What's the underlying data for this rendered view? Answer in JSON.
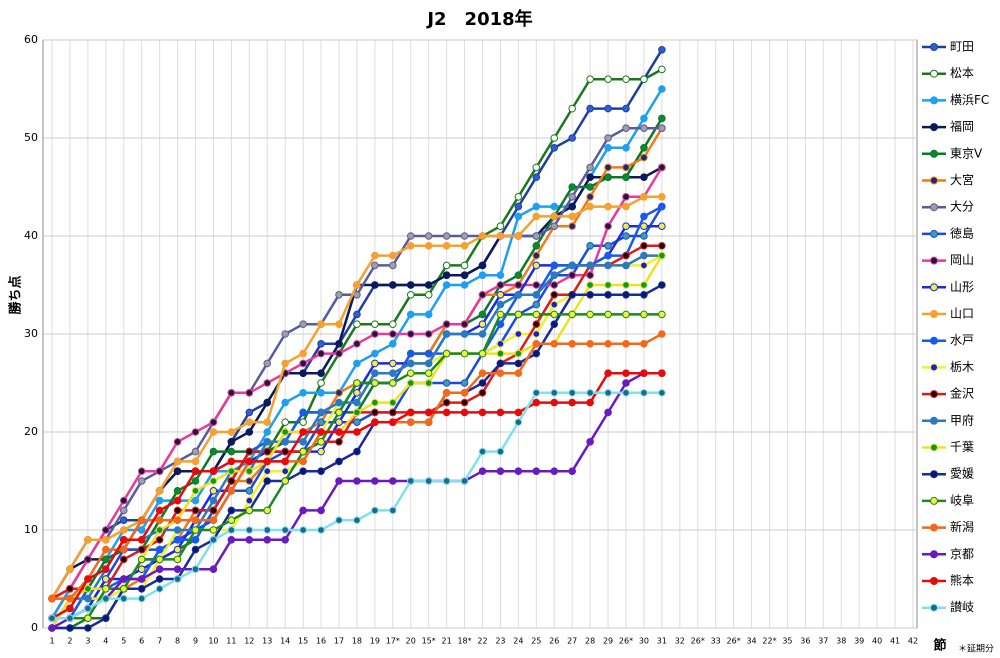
{
  "chart_data": {
    "type": "line",
    "title": "J2　2018年",
    "y_label": "勝ち点",
    "x_label": "節",
    "note": "＊延期分",
    "categories": [
      "1",
      "2",
      "3",
      "4",
      "5",
      "6",
      "7",
      "8",
      "9",
      "10",
      "11",
      "12",
      "13",
      "14",
      "15",
      "16",
      "17",
      "18",
      "19",
      "17*",
      "20",
      "15*",
      "21",
      "18*",
      "22",
      "23",
      "24",
      "25",
      "26",
      "27",
      "28",
      "29",
      "26*",
      "30",
      "31",
      "32",
      "26*",
      "33",
      "26*",
      "34",
      "22*",
      "35",
      "36",
      "37",
      "38",
      "39",
      "40",
      "41",
      "42"
    ],
    "ylim": [
      0,
      60
    ],
    "yticks": [
      0,
      10,
      20,
      30,
      40,
      50,
      60
    ],
    "grid": true,
    "series": [
      {
        "name": "町田",
        "color": "#1f3f9f",
        "marker": "#3060d0",
        "values": [
          1,
          4,
          7,
          10,
          11,
          11,
          14,
          16,
          16,
          16,
          19,
          22,
          23,
          26,
          26,
          29,
          29,
          32,
          35,
          35,
          35,
          35,
          36,
          36,
          37,
          40,
          43,
          46,
          49,
          50,
          53,
          53,
          53,
          56,
          59,
          null,
          null,
          null,
          null,
          null,
          null,
          null,
          null,
          null,
          null,
          null,
          null,
          null,
          null
        ]
      },
      {
        "name": "松本",
        "color": "#1a7a1a",
        "marker": "#ffffff",
        "values": [
          0,
          0,
          1,
          1,
          4,
          7,
          7,
          8,
          9,
          12,
          15,
          18,
          18,
          21,
          21,
          25,
          28,
          31,
          31,
          31,
          34,
          34,
          37,
          37,
          40,
          41,
          44,
          47,
          50,
          53,
          56,
          56,
          56,
          56,
          57,
          null,
          null,
          null,
          null,
          null,
          null,
          null,
          null,
          null,
          null,
          null,
          null,
          null,
          null
        ]
      },
      {
        "name": "横浜FC",
        "color": "#1e9fef",
        "marker": "#1e9fef",
        "values": [
          1,
          4,
          4,
          7,
          10,
          10,
          13,
          13,
          13,
          16,
          16,
          17,
          20,
          23,
          24,
          24,
          24,
          27,
          28,
          29,
          32,
          32,
          35,
          35,
          36,
          36,
          42,
          43,
          43,
          43,
          46,
          49,
          49,
          52,
          55,
          null,
          null,
          null,
          null,
          null,
          null,
          null,
          null,
          null,
          null,
          null,
          null,
          null,
          null
        ]
      },
      {
        "name": "福岡",
        "color": "#0a1a5a",
        "marker": "#0a1a5a",
        "values": [
          3,
          6,
          7,
          7,
          8,
          11,
          14,
          16,
          16,
          16,
          19,
          20,
          23,
          26,
          26,
          26,
          29,
          35,
          35,
          35,
          35,
          35,
          36,
          36,
          37,
          40,
          40,
          40,
          42,
          43,
          46,
          46,
          46,
          46,
          47,
          null,
          null,
          null,
          null,
          null,
          null,
          null,
          null,
          null,
          null,
          null,
          null,
          null,
          null
        ]
      },
      {
        "name": "東京V",
        "color": "#0a7a2a",
        "marker": "#0a8a2a",
        "values": [
          1,
          1,
          4,
          7,
          8,
          8,
          11,
          14,
          15,
          18,
          18,
          18,
          18,
          19,
          22,
          22,
          22,
          22,
          25,
          25,
          28,
          28,
          31,
          31,
          32,
          35,
          36,
          39,
          42,
          45,
          45,
          46,
          46,
          49,
          52,
          null,
          null,
          null,
          null,
          null,
          null,
          null,
          null,
          null,
          null,
          null,
          null,
          null,
          null
        ]
      },
      {
        "name": "大宮",
        "color": "#f07a1a",
        "marker": "#1a2a7a",
        "values": [
          3,
          3,
          3,
          3,
          4,
          5,
          8,
          9,
          12,
          12,
          15,
          15,
          17,
          20,
          20,
          21,
          24,
          25,
          25,
          25,
          28,
          28,
          31,
          31,
          34,
          34,
          35,
          38,
          41,
          41,
          44,
          47,
          47,
          48,
          51,
          null,
          null,
          null,
          null,
          null,
          null,
          null,
          null,
          null,
          null,
          null,
          null,
          null,
          null
        ]
      },
      {
        "name": "大分",
        "color": "#5a5aa0",
        "marker": "#a0a0a0",
        "values": [
          3,
          6,
          9,
          9,
          12,
          15,
          16,
          17,
          18,
          21,
          24,
          24,
          27,
          30,
          31,
          31,
          34,
          34,
          37,
          37,
          40,
          40,
          40,
          40,
          40,
          40,
          40,
          40,
          41,
          44,
          47,
          50,
          51,
          51,
          51,
          null,
          null,
          null,
          null,
          null,
          null,
          null,
          null,
          null,
          null,
          null,
          null,
          null,
          null
        ]
      },
      {
        "name": "徳島",
        "color": "#1a4ae0",
        "marker": "#40a0a0",
        "values": [
          1,
          1,
          2,
          5,
          8,
          8,
          8,
          9,
          10,
          11,
          14,
          14,
          17,
          18,
          18,
          21,
          21,
          21,
          22,
          22,
          25,
          25,
          25,
          25,
          28,
          29,
          32,
          33,
          36,
          36,
          39,
          39,
          40,
          40,
          43,
          null,
          null,
          null,
          null,
          null,
          null,
          null,
          null,
          null,
          null,
          null,
          null,
          null,
          null
        ]
      },
      {
        "name": "岡山",
        "color": "#e83a9a",
        "marker": "#1a1a3a",
        "values": [
          3,
          4,
          7,
          10,
          13,
          16,
          16,
          19,
          20,
          21,
          24,
          24,
          25,
          26,
          27,
          28,
          28,
          29,
          30,
          30,
          30,
          30,
          31,
          31,
          34,
          35,
          35,
          35,
          35,
          36,
          36,
          41,
          44,
          44,
          47,
          null,
          null,
          null,
          null,
          null,
          null,
          null,
          null,
          null,
          null,
          null,
          null,
          null,
          null
        ]
      },
      {
        "name": "山形",
        "color": "#1a2ae0",
        "marker": "#f0f040",
        "values": [
          1,
          1,
          2,
          5,
          5,
          6,
          7,
          8,
          11,
          14,
          14,
          17,
          18,
          18,
          18,
          18,
          21,
          24,
          27,
          27,
          27,
          27,
          30,
          30,
          31,
          34,
          34,
          37,
          37,
          37,
          37,
          38,
          41,
          41,
          41,
          null,
          null,
          null,
          null,
          null,
          null,
          null,
          null,
          null,
          null,
          null,
          null,
          null,
          null
        ]
      },
      {
        "name": "山口",
        "color": "#f5a030",
        "marker": "#f5a030",
        "values": [
          3,
          6,
          9,
          9,
          10,
          11,
          14,
          17,
          17,
          20,
          20,
          21,
          21,
          27,
          28,
          31,
          31,
          35,
          38,
          38,
          39,
          39,
          39,
          39,
          40,
          40,
          40,
          42,
          42,
          42,
          43,
          43,
          43,
          44,
          44,
          null,
          null,
          null,
          null,
          null,
          null,
          null,
          null,
          null,
          null,
          null,
          null,
          null,
          null
        ]
      },
      {
        "name": "水戸",
        "color": "#1a5ae8",
        "marker": "#1a5ae8",
        "values": [
          1,
          1,
          4,
          4,
          5,
          5,
          8,
          9,
          9,
          12,
          15,
          18,
          19,
          19,
          22,
          22,
          22,
          25,
          25,
          25,
          28,
          28,
          28,
          28,
          28,
          31,
          34,
          34,
          37,
          37,
          37,
          38,
          38,
          42,
          43,
          null,
          null,
          null,
          null,
          null,
          null,
          null,
          null,
          null,
          null,
          null,
          null,
          null,
          null
        ]
      },
      {
        "name": "栃木",
        "color": "#f0f030",
        "marker": "#1a1ae0",
        "values": [
          0,
          3,
          3,
          3,
          4,
          4,
          7,
          10,
          10,
          10,
          10,
          13,
          16,
          16,
          17,
          20,
          23,
          23,
          26,
          26,
          27,
          27,
          28,
          28,
          28,
          29,
          30,
          30,
          33,
          34,
          37,
          37,
          37,
          37,
          38,
          null,
          null,
          null,
          null,
          null,
          null,
          null,
          null,
          null,
          null,
          null,
          null,
          null,
          null
        ]
      },
      {
        "name": "金沢",
        "color": "#e01a1a",
        "marker": "#1a0a0a",
        "values": [
          3,
          4,
          4,
          4,
          7,
          8,
          9,
          12,
          12,
          12,
          15,
          18,
          18,
          18,
          18,
          19,
          19,
          22,
          22,
          22,
          22,
          22,
          23,
          23,
          24,
          27,
          28,
          31,
          34,
          34,
          37,
          37,
          38,
          39,
          39,
          null,
          null,
          null,
          null,
          null,
          null,
          null,
          null,
          null,
          null,
          null,
          null,
          null,
          null
        ]
      },
      {
        "name": "甲府",
        "color": "#2a7ac0",
        "marker": "#2a7ac0",
        "values": [
          0,
          3,
          3,
          6,
          9,
          9,
          10,
          10,
          10,
          13,
          16,
          16,
          19,
          19,
          19,
          22,
          23,
          23,
          26,
          26,
          27,
          27,
          30,
          30,
          30,
          33,
          34,
          34,
          36,
          37,
          37,
          37,
          37,
          38,
          38,
          null,
          null,
          null,
          null,
          null,
          null,
          null,
          null,
          null,
          null,
          null,
          null,
          null,
          null
        ]
      },
      {
        "name": "千葉",
        "color": "#f0e020",
        "marker": "#0a9a2a",
        "values": [
          0,
          3,
          4,
          4,
          4,
          7,
          10,
          11,
          14,
          15,
          16,
          16,
          17,
          20,
          20,
          20,
          20,
          22,
          23,
          23,
          25,
          25,
          28,
          28,
          28,
          28,
          28,
          29,
          29,
          32,
          35,
          35,
          35,
          35,
          38,
          null,
          null,
          null,
          null,
          null,
          null,
          null,
          null,
          null,
          null,
          null,
          null,
          null,
          null
        ]
      },
      {
        "name": "愛媛",
        "color": "#1a2a9a",
        "marker": "#0a1a6a",
        "values": [
          0,
          0,
          0,
          1,
          4,
          4,
          5,
          5,
          8,
          9,
          12,
          12,
          15,
          15,
          16,
          16,
          17,
          18,
          21,
          21,
          21,
          21,
          24,
          24,
          25,
          27,
          27,
          28,
          31,
          34,
          34,
          34,
          34,
          34,
          35,
          null,
          null,
          null,
          null,
          null,
          null,
          null,
          null,
          null,
          null,
          null,
          null,
          null,
          null
        ]
      },
      {
        "name": "岐阜",
        "color": "#1a8a1a",
        "marker": "#f0f040",
        "values": [
          1,
          1,
          1,
          4,
          4,
          7,
          7,
          7,
          10,
          10,
          11,
          12,
          12,
          15,
          18,
          19,
          22,
          25,
          25,
          25,
          26,
          26,
          28,
          28,
          28,
          32,
          32,
          32,
          32,
          32,
          32,
          32,
          32,
          32,
          32,
          null,
          null,
          null,
          null,
          null,
          null,
          null,
          null,
          null,
          null,
          null,
          null,
          null,
          null
        ]
      },
      {
        "name": "新潟",
        "color": "#f06a1a",
        "marker": "#f06a1a",
        "values": [
          3,
          3,
          5,
          8,
          8,
          11,
          11,
          11,
          11,
          11,
          14,
          17,
          17,
          17,
          17,
          20,
          20,
          20,
          21,
          21,
          21,
          21,
          24,
          24,
          26,
          26,
          26,
          29,
          29,
          29,
          29,
          29,
          29,
          29,
          30,
          null,
          null,
          null,
          null,
          null,
          null,
          null,
          null,
          null,
          null,
          null,
          null,
          null,
          null
        ]
      },
      {
        "name": "京都",
        "color": "#6a1ac0",
        "marker": "#6a1ac0",
        "values": [
          0,
          1,
          2,
          3,
          5,
          5,
          6,
          6,
          6,
          6,
          9,
          9,
          9,
          9,
          12,
          12,
          15,
          15,
          15,
          15,
          15,
          15,
          15,
          15,
          16,
          16,
          16,
          16,
          16,
          16,
          19,
          22,
          25,
          26,
          26,
          null,
          null,
          null,
          null,
          null,
          null,
          null,
          null,
          null,
          null,
          null,
          null,
          null,
          null
        ]
      },
      {
        "name": "熊本",
        "color": "#e80a0a",
        "marker": "#e80a0a",
        "values": [
          1,
          2,
          5,
          6,
          9,
          9,
          12,
          13,
          16,
          16,
          17,
          17,
          17,
          17,
          20,
          20,
          20,
          20,
          21,
          21,
          22,
          22,
          22,
          22,
          22,
          22,
          22,
          23,
          23,
          23,
          23,
          26,
          26,
          26,
          26,
          null,
          null,
          null,
          null,
          null,
          null,
          null,
          null,
          null,
          null,
          null,
          null,
          null,
          null
        ]
      },
      {
        "name": "讃岐",
        "color": "#80e0f0",
        "marker": "#1a6a8a",
        "values": [
          1,
          1,
          2,
          3,
          3,
          3,
          4,
          5,
          6,
          9,
          10,
          10,
          10,
          10,
          10,
          10,
          11,
          11,
          12,
          12,
          15,
          15,
          15,
          15,
          18,
          18,
          21,
          24,
          24,
          24,
          24,
          24,
          24,
          24,
          24,
          null,
          null,
          null,
          null,
          null,
          null,
          null,
          null,
          null,
          null,
          null,
          null,
          null,
          null
        ]
      }
    ]
  }
}
